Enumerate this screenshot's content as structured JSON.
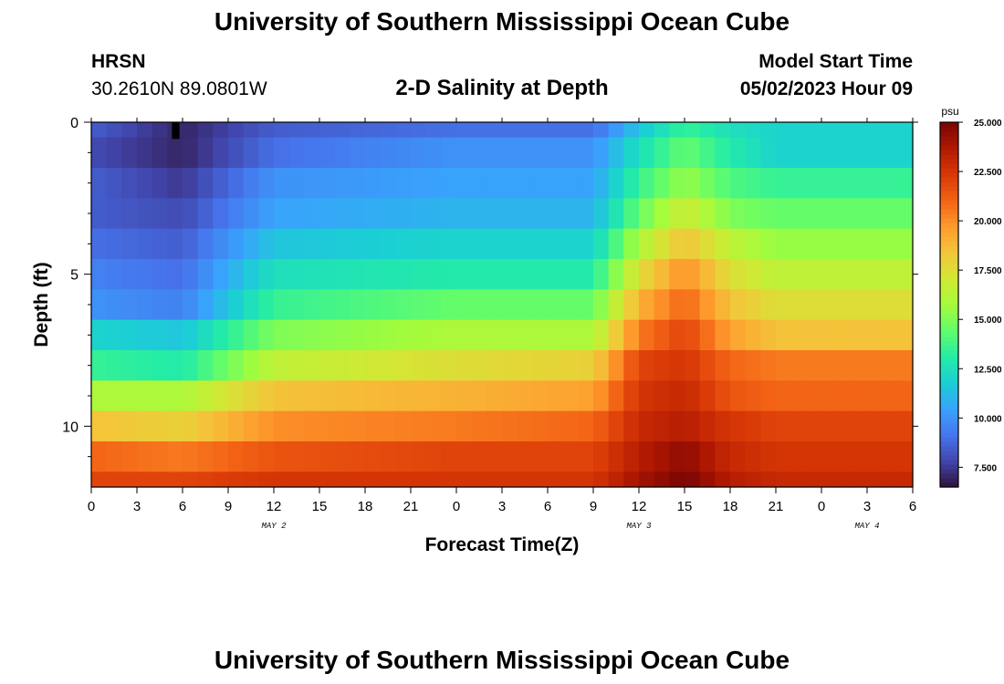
{
  "header": {
    "title": "University of Southern Mississippi Ocean Cube",
    "station": "HRSN",
    "coords": "30.2610N  89.0801W",
    "subtitle": "2-D Salinity at Depth",
    "model_start_label": "Model Start Time",
    "model_start_value": "05/02/2023 Hour 09"
  },
  "footer": {
    "title": "University of Southern Mississippi Ocean Cube"
  },
  "colors": {
    "colormap": [
      "#30123b",
      "#4145ab",
      "#4675ed",
      "#39a2fc",
      "#1bcfd4",
      "#24eca6",
      "#61fc6c",
      "#a4fc3b",
      "#d1e834",
      "#f3c63a",
      "#fe9b2d",
      "#f36315",
      "#d93806",
      "#b11901",
      "#7a0403"
    ],
    "marker": "#000000"
  },
  "chart_data": {
    "type": "heatmap",
    "title": "2-D Salinity at Depth",
    "xlabel": "Forecast Time(Z)",
    "ylabel": "Depth (ft)",
    "x_tick_labels": [
      "0",
      "3",
      "6",
      "9",
      "12",
      "15",
      "18",
      "21",
      "0",
      "3",
      "6",
      "9",
      "12",
      "15",
      "18",
      "21",
      "0",
      "3",
      "6"
    ],
    "x_hours": [
      0,
      3,
      6,
      9,
      12,
      15,
      18,
      21,
      24,
      27,
      30,
      33,
      36,
      39,
      42,
      45,
      48,
      51,
      54
    ],
    "xlim": [
      0,
      54
    ],
    "date_labels": [
      {
        "label": "MAY 2",
        "hour": 12
      },
      {
        "label": "MAY 3",
        "hour": 36
      },
      {
        "label": "MAY 4",
        "hour": 51
      }
    ],
    "y_tick_labels": [
      "0",
      "5",
      "10"
    ],
    "y_ticks": [
      0,
      5,
      10
    ],
    "ylim": [
      0,
      12
    ],
    "depth_layers": [
      0,
      1,
      2,
      3,
      4,
      5,
      6,
      7,
      8,
      9,
      10,
      11,
      12
    ],
    "colorbar": {
      "unit": "psu",
      "min": 6.5,
      "max": 25.0,
      "tick_values": [
        7.5,
        10.0,
        12.5,
        15.0,
        17.5,
        20.0,
        22.5,
        25.0
      ],
      "tick_labels": [
        "7.500",
        "10.000",
        "12.500",
        "15.000",
        "17.500",
        "20.000",
        "22.500",
        "25.000"
      ]
    },
    "salinity_profile": {
      "hours": [
        0,
        6,
        12,
        24,
        33,
        36,
        39,
        42,
        45,
        54
      ],
      "layers": [
        [
          8.5,
          7.0,
          8.5,
          9.0,
          9.0,
          11.5,
          13.5,
          12.5,
          12.0,
          12.0
        ],
        [
          8.0,
          7.0,
          9.0,
          10.0,
          10.0,
          12.5,
          14.5,
          13.0,
          12.0,
          12.0
        ],
        [
          8.5,
          7.5,
          10.0,
          10.5,
          10.5,
          13.5,
          15.5,
          14.0,
          13.5,
          13.5
        ],
        [
          8.5,
          8.0,
          10.5,
          11.0,
          11.0,
          14.5,
          17.0,
          15.0,
          14.5,
          14.5
        ],
        [
          9.0,
          8.5,
          11.5,
          12.0,
          12.0,
          16.0,
          18.5,
          16.5,
          15.5,
          15.5
        ],
        [
          9.5,
          9.0,
          12.5,
          13.0,
          13.0,
          17.5,
          20.0,
          17.5,
          16.5,
          16.5
        ],
        [
          10.0,
          9.5,
          13.5,
          14.5,
          14.5,
          19.0,
          21.0,
          18.5,
          17.5,
          17.5
        ],
        [
          12.0,
          11.5,
          15.0,
          16.0,
          16.0,
          20.5,
          22.0,
          19.5,
          18.5,
          18.5
        ],
        [
          13.5,
          13.0,
          16.5,
          17.5,
          18.0,
          22.0,
          22.5,
          21.0,
          20.5,
          20.5
        ],
        [
          16.0,
          16.0,
          18.5,
          19.0,
          19.5,
          22.5,
          23.0,
          21.5,
          21.0,
          21.0
        ],
        [
          18.5,
          18.0,
          20.0,
          20.5,
          21.0,
          23.0,
          23.5,
          22.5,
          22.0,
          22.0
        ],
        [
          21.0,
          20.5,
          21.5,
          22.0,
          22.0,
          23.5,
          24.5,
          23.0,
          22.5,
          22.5
        ],
        [
          22.0,
          22.0,
          22.5,
          22.5,
          22.5,
          24.0,
          25.0,
          23.5,
          23.0,
          23.0
        ]
      ]
    }
  }
}
